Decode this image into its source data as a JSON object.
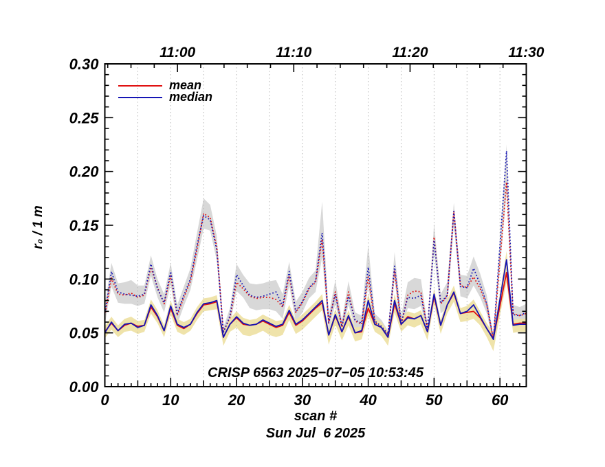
{
  "figure": {
    "annotation": "CRISP 6563 2025−07−05 10:53:45",
    "date_label": "Sun Jul  6 2025",
    "x_axis_label": "scan #",
    "y_axis_label": "r₀ / 1 m"
  },
  "legend": {
    "items": [
      {
        "label": "mean",
        "color": "#e01010"
      },
      {
        "label": "median",
        "color": "#1515b5"
      }
    ]
  },
  "colors": {
    "mean": "#e01010",
    "median": "#1515b5",
    "gray_band": "#d8d8d8",
    "yellow_band": "#efe3aa",
    "gridline": "#b3b3b3",
    "axis": "#000000"
  },
  "chart_data": {
    "type": "line",
    "title": "",
    "xlabel": "scan #",
    "ylabel": "r₀ / 1 m",
    "xlim": [
      0,
      64
    ],
    "ylim": [
      0.0,
      0.3
    ],
    "grid": "vertical-dotted-every-5-scans",
    "legend_position": "top-left-inside",
    "x_tick_labels": [
      "0",
      "10",
      "20",
      "30",
      "40",
      "50",
      "60"
    ],
    "x_tick_values": [
      0,
      10,
      20,
      30,
      40,
      50,
      60
    ],
    "y_tick_labels": [
      "0.00",
      "0.05",
      "0.10",
      "0.15",
      "0.20",
      "0.25",
      "0.30"
    ],
    "y_tick_values": [
      0.0,
      0.05,
      0.1,
      0.15,
      0.2,
      0.25,
      0.3
    ],
    "y_minor_step": 0.01,
    "x_minor_step": 1,
    "gridline_scans": [
      5,
      10,
      15,
      20,
      25,
      30,
      35,
      40,
      45,
      50,
      55,
      60
    ],
    "top_axis": {
      "label_type": "time-of-day",
      "major": [
        {
          "scan": 11.03,
          "label": "11:00"
        },
        {
          "scan": 28.69,
          "label": "11:10"
        },
        {
          "scan": 46.35,
          "label": "11:20"
        },
        {
          "scan": 63.99,
          "label": "11:30"
        }
      ],
      "minor_scans": [
        0.44,
        3.97,
        7.5,
        14.56,
        18.1,
        21.63,
        25.16,
        32.22,
        35.75,
        39.28,
        42.82,
        49.88,
        53.41,
        56.94,
        60.47
      ]
    },
    "series": [
      {
        "name": "mean",
        "style": "solid",
        "color": "#e01010",
        "values": [
          0.051,
          0.059,
          0.052,
          0.057,
          0.059,
          0.056,
          0.057,
          0.074,
          0.065,
          0.052,
          0.073,
          0.057,
          0.054,
          0.058,
          0.068,
          0.076,
          0.077,
          0.079,
          0.046,
          0.058,
          0.064,
          0.058,
          0.057,
          0.058,
          0.061,
          0.058,
          0.055,
          0.057,
          0.069,
          0.057,
          0.061,
          0.067,
          0.073,
          0.078,
          0.048,
          0.066,
          0.051,
          0.065,
          0.05,
          0.051,
          0.073,
          0.058,
          0.055,
          0.046,
          0.077,
          0.058,
          0.065,
          0.063,
          0.066,
          0.051,
          0.084,
          0.057,
          0.076,
          0.087,
          0.068,
          0.069,
          0.07,
          0.064,
          0.054,
          0.045,
          0.075,
          0.106,
          0.058,
          0.059,
          0.059
        ]
      },
      {
        "name": "median",
        "style": "solid",
        "color": "#1515b5",
        "values": [
          0.05,
          0.06,
          0.052,
          0.058,
          0.059,
          0.055,
          0.057,
          0.076,
          0.066,
          0.052,
          0.075,
          0.058,
          0.055,
          0.058,
          0.069,
          0.077,
          0.078,
          0.08,
          0.046,
          0.058,
          0.065,
          0.059,
          0.057,
          0.058,
          0.062,
          0.059,
          0.056,
          0.058,
          0.071,
          0.058,
          0.062,
          0.068,
          0.074,
          0.08,
          0.048,
          0.067,
          0.051,
          0.066,
          0.05,
          0.052,
          0.08,
          0.058,
          0.055,
          0.046,
          0.08,
          0.058,
          0.064,
          0.063,
          0.066,
          0.051,
          0.086,
          0.057,
          0.076,
          0.088,
          0.068,
          0.07,
          0.076,
          0.065,
          0.054,
          0.044,
          0.081,
          0.118,
          0.057,
          0.058,
          0.058
        ]
      },
      {
        "name": "mean_dotted",
        "style": "dotted",
        "color": "#e01010",
        "values": [
          0.066,
          0.101,
          0.086,
          0.085,
          0.087,
          0.083,
          0.085,
          0.111,
          0.092,
          0.077,
          0.103,
          0.066,
          0.083,
          0.098,
          0.128,
          0.161,
          0.157,
          0.13,
          0.051,
          0.064,
          0.097,
          0.091,
          0.084,
          0.082,
          0.083,
          0.083,
          0.081,
          0.074,
          0.103,
          0.069,
          0.078,
          0.091,
          0.097,
          0.137,
          0.059,
          0.088,
          0.055,
          0.088,
          0.061,
          0.058,
          0.102,
          0.06,
          0.055,
          0.048,
          0.108,
          0.057,
          0.085,
          0.089,
          0.088,
          0.054,
          0.139,
          0.077,
          0.084,
          0.163,
          0.094,
          0.092,
          0.102,
          0.091,
          0.076,
          0.044,
          0.117,
          0.19,
          0.068,
          0.066,
          0.068
        ]
      },
      {
        "name": "median_dotted",
        "style": "dotted",
        "color": "#1515b5",
        "values": [
          0.068,
          0.107,
          0.088,
          0.086,
          0.085,
          0.084,
          0.086,
          0.114,
          0.091,
          0.078,
          0.107,
          0.068,
          0.085,
          0.1,
          0.131,
          0.159,
          0.155,
          0.127,
          0.05,
          0.066,
          0.104,
          0.094,
          0.085,
          0.083,
          0.084,
          0.086,
          0.088,
          0.075,
          0.107,
          0.07,
          0.079,
          0.092,
          0.098,
          0.143,
          0.06,
          0.086,
          0.056,
          0.084,
          0.062,
          0.059,
          0.111,
          0.061,
          0.056,
          0.049,
          0.112,
          0.059,
          0.083,
          0.082,
          0.085,
          0.053,
          0.136,
          0.078,
          0.085,
          0.163,
          0.093,
          0.092,
          0.11,
          0.095,
          0.077,
          0.044,
          0.131,
          0.219,
          0.067,
          0.066,
          0.069
        ]
      }
    ],
    "bands": [
      {
        "name": "dotted_scatter_band",
        "color": "#d8d8d8",
        "hi": [
          0.076,
          0.115,
          0.096,
          0.097,
          0.099,
          0.094,
          0.094,
          0.122,
          0.1,
          0.086,
          0.115,
          0.076,
          0.093,
          0.11,
          0.143,
          0.175,
          0.169,
          0.14,
          0.055,
          0.073,
          0.114,
          0.104,
          0.096,
          0.095,
          0.096,
          0.098,
          0.099,
          0.086,
          0.116,
          0.079,
          0.088,
          0.101,
          0.108,
          0.172,
          0.067,
          0.099,
          0.062,
          0.098,
          0.069,
          0.066,
          0.132,
          0.068,
          0.062,
          0.052,
          0.125,
          0.066,
          0.097,
          0.101,
          0.1,
          0.058,
          0.152,
          0.086,
          0.097,
          0.171,
          0.104,
          0.103,
          0.121,
          0.105,
          0.085,
          0.047,
          0.138,
          0.225,
          0.076,
          0.074,
          0.077
        ],
        "lo": [
          0.058,
          0.093,
          0.078,
          0.077,
          0.077,
          0.075,
          0.077,
          0.103,
          0.083,
          0.069,
          0.095,
          0.058,
          0.075,
          0.09,
          0.118,
          0.147,
          0.145,
          0.117,
          0.047,
          0.057,
          0.089,
          0.083,
          0.073,
          0.071,
          0.072,
          0.072,
          0.07,
          0.063,
          0.094,
          0.06,
          0.069,
          0.082,
          0.088,
          0.12,
          0.052,
          0.077,
          0.049,
          0.076,
          0.054,
          0.051,
          0.094,
          0.053,
          0.048,
          0.045,
          0.1,
          0.05,
          0.073,
          0.072,
          0.075,
          0.049,
          0.125,
          0.068,
          0.074,
          0.15,
          0.084,
          0.082,
          0.094,
          0.083,
          0.068,
          0.041,
          0.11,
          0.18,
          0.059,
          0.058,
          0.06
        ]
      },
      {
        "name": "solid_scatter_band",
        "color": "#efe3aa",
        "hi": [
          0.056,
          0.065,
          0.057,
          0.063,
          0.065,
          0.061,
          0.062,
          0.081,
          0.071,
          0.057,
          0.08,
          0.063,
          0.06,
          0.063,
          0.074,
          0.082,
          0.083,
          0.085,
          0.051,
          0.063,
          0.07,
          0.064,
          0.062,
          0.063,
          0.067,
          0.064,
          0.061,
          0.062,
          0.076,
          0.062,
          0.067,
          0.073,
          0.079,
          0.086,
          0.053,
          0.072,
          0.056,
          0.071,
          0.055,
          0.056,
          0.086,
          0.063,
          0.06,
          0.051,
          0.086,
          0.063,
          0.07,
          0.068,
          0.071,
          0.056,
          0.091,
          0.062,
          0.081,
          0.094,
          0.073,
          0.075,
          0.081,
          0.07,
          0.059,
          0.05,
          0.087,
          0.126,
          0.062,
          0.063,
          0.063
        ],
        "lo": [
          0.045,
          0.053,
          0.046,
          0.051,
          0.052,
          0.049,
          0.051,
          0.068,
          0.059,
          0.046,
          0.067,
          0.051,
          0.048,
          0.052,
          0.062,
          0.07,
          0.071,
          0.072,
          0.038,
          0.051,
          0.055,
          0.048,
          0.047,
          0.049,
          0.052,
          0.048,
          0.046,
          0.048,
          0.062,
          0.049,
          0.053,
          0.059,
          0.065,
          0.071,
          0.039,
          0.058,
          0.043,
          0.057,
          0.042,
          0.044,
          0.066,
          0.051,
          0.047,
          0.038,
          0.069,
          0.051,
          0.057,
          0.055,
          0.058,
          0.043,
          0.077,
          0.049,
          0.068,
          0.079,
          0.06,
          0.061,
          0.063,
          0.057,
          0.046,
          0.033,
          0.066,
          0.097,
          0.05,
          0.051,
          0.051
        ]
      }
    ]
  }
}
